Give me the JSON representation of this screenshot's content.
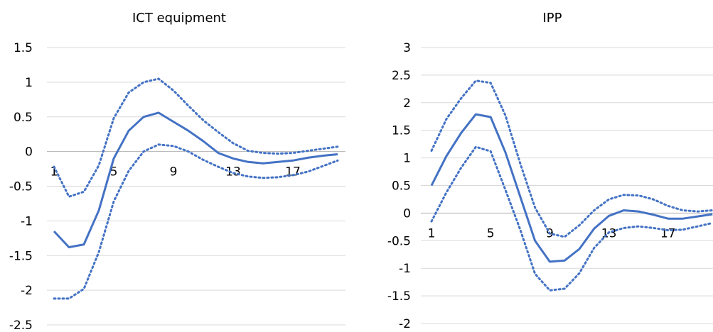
{
  "chart_data": [
    {
      "type": "line",
      "title": "ICT equipment",
      "ylim": [
        -2.5,
        1.5
      ],
      "yticks": [
        1.5,
        1,
        0.5,
        0,
        -0.5,
        -1,
        -1.5,
        -2,
        -2.5
      ],
      "ytick_labels": [
        "1.5",
        "1",
        "0.5",
        "0",
        "-0.5",
        "-1",
        "-1.5",
        "-2",
        "-2.5"
      ],
      "x": [
        1,
        2,
        3,
        4,
        5,
        6,
        7,
        8,
        9,
        10,
        11,
        12,
        13,
        14,
        15,
        16,
        17,
        18,
        19,
        20
      ],
      "xticks": [
        1,
        5,
        9,
        13,
        17
      ],
      "xtick_labels": [
        "1",
        "5",
        "9",
        "13",
        "17"
      ],
      "grid": true,
      "series": [
        {
          "values": [
            -1.15,
            -1.38,
            -1.34,
            -0.85,
            -0.1,
            0.3,
            0.5,
            0.56,
            0.43,
            0.3,
            0.15,
            -0.02,
            -0.1,
            -0.15,
            -0.17,
            -0.15,
            -0.13,
            -0.09,
            -0.06,
            -0.04
          ]
        },
        {
          "values": [
            -0.22,
            -0.65,
            -0.58,
            -0.2,
            0.48,
            0.85,
            1.0,
            1.05,
            0.88,
            0.66,
            0.45,
            0.28,
            0.12,
            0.01,
            -0.02,
            -0.03,
            -0.02,
            0.01,
            0.04,
            0.07
          ]
        },
        {
          "values": [
            -2.12,
            -2.12,
            -1.98,
            -1.45,
            -0.72,
            -0.28,
            0.0,
            0.1,
            0.08,
            0.0,
            -0.12,
            -0.22,
            -0.31,
            -0.36,
            -0.38,
            -0.37,
            -0.34,
            -0.29,
            -0.21,
            -0.13
          ]
        }
      ]
    },
    {
      "type": "line",
      "title": "IPP",
      "ylim": [
        -2,
        3
      ],
      "yticks": [
        3,
        2.5,
        2,
        1.5,
        1,
        0.5,
        0,
        -0.5,
        -1,
        -1.5,
        -2
      ],
      "ytick_labels": [
        "3",
        "2.5",
        "2",
        "1.5",
        "1",
        "0.5",
        "0",
        "-0.5",
        "-1",
        "-1.5",
        "-2"
      ],
      "x": [
        1,
        2,
        3,
        4,
        5,
        6,
        7,
        8,
        9,
        10,
        11,
        12,
        13,
        14,
        15,
        16,
        17,
        18,
        19,
        20
      ],
      "xticks": [
        1,
        5,
        9,
        13,
        17
      ],
      "xtick_labels": [
        "1",
        "5",
        "9",
        "13",
        "17"
      ],
      "grid": true,
      "series": [
        {
          "values": [
            0.5,
            1.03,
            1.45,
            1.79,
            1.74,
            1.1,
            0.3,
            -0.5,
            -0.88,
            -0.86,
            -0.65,
            -0.28,
            -0.05,
            0.05,
            0.03,
            -0.03,
            -0.1,
            -0.1,
            -0.06,
            -0.02
          ]
        },
        {
          "values": [
            1.13,
            1.7,
            2.08,
            2.4,
            2.36,
            1.77,
            0.9,
            0.1,
            -0.37,
            -0.43,
            -0.22,
            0.05,
            0.25,
            0.33,
            0.32,
            0.25,
            0.13,
            0.05,
            0.03,
            0.05
          ]
        },
        {
          "values": [
            -0.15,
            0.37,
            0.82,
            1.2,
            1.12,
            0.42,
            -0.3,
            -1.1,
            -1.4,
            -1.37,
            -1.09,
            -0.63,
            -0.35,
            -0.27,
            -0.24,
            -0.27,
            -0.31,
            -0.3,
            -0.24,
            -0.18
          ]
        }
      ]
    }
  ]
}
